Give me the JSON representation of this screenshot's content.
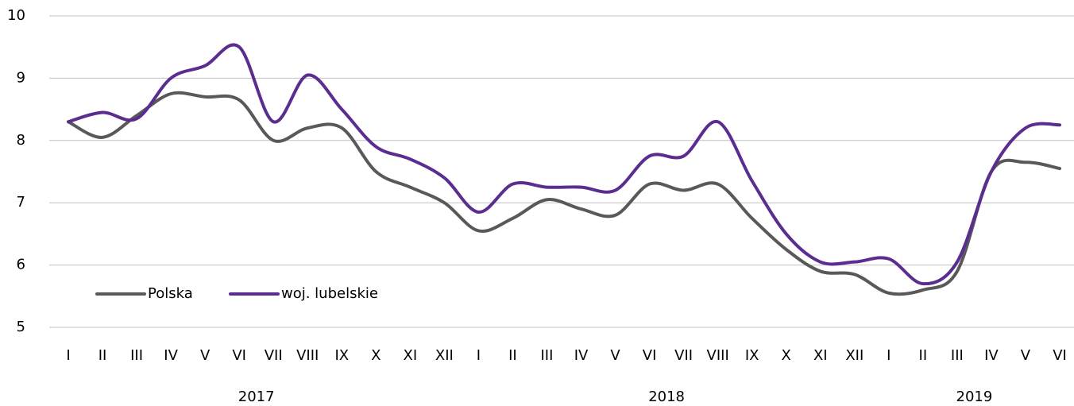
{
  "chart_data": {
    "type": "line",
    "categories": [
      "I",
      "II",
      "III",
      "IV",
      "V",
      "VI",
      "VII",
      "VIII",
      "IX",
      "X",
      "XI",
      "XII",
      "I",
      "II",
      "III",
      "IV",
      "V",
      "VI",
      "VII",
      "VIII",
      "IX",
      "X",
      "XI",
      "XII",
      "I",
      "II",
      "III",
      "IV",
      "V",
      "VI"
    ],
    "year_groups": [
      {
        "label": "2017",
        "count": 12
      },
      {
        "label": "2018",
        "count": 12
      },
      {
        "label": "2019",
        "count": 6
      }
    ],
    "series": [
      {
        "name": "Polska",
        "color": "#595959",
        "values": [
          8.3,
          8.05,
          8.4,
          8.75,
          8.7,
          8.65,
          8.0,
          8.2,
          8.2,
          7.5,
          7.25,
          7.0,
          6.55,
          6.75,
          7.05,
          6.9,
          6.8,
          7.3,
          7.2,
          7.3,
          6.75,
          6.25,
          5.9,
          5.85,
          5.55,
          5.6,
          5.9,
          7.5,
          7.65,
          7.55
        ]
      },
      {
        "name": "woj. lubelskie",
        "color": "#5b2d90",
        "values": [
          8.3,
          8.45,
          8.35,
          9.0,
          9.2,
          9.5,
          8.3,
          9.05,
          8.5,
          7.9,
          7.7,
          7.4,
          6.85,
          7.3,
          7.25,
          7.25,
          7.2,
          7.75,
          7.75,
          8.3,
          7.35,
          6.5,
          6.05,
          6.05,
          6.1,
          5.7,
          6.05,
          7.5,
          8.2,
          8.25
        ]
      }
    ],
    "ylim": [
      5,
      10
    ],
    "yticks": [
      5,
      6,
      7,
      8,
      9,
      10
    ],
    "grid": true,
    "legend": "lower left",
    "smooth": true
  }
}
